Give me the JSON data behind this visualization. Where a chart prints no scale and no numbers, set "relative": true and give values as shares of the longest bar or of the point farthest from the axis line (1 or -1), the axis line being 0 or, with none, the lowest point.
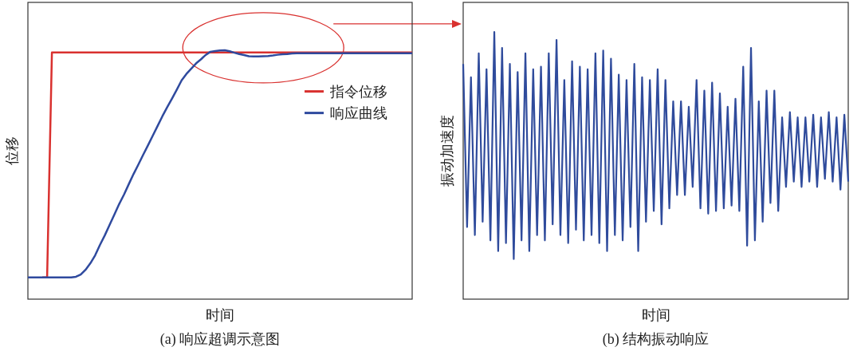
{
  "chart_data": [
    {
      "type": "line",
      "relative": true,
      "legend": "right",
      "xlabel": "时间",
      "ylabel": "位移",
      "annotations": [
        "(a) 响应超调示意图"
      ],
      "categories": [
        null,
        null,
        null,
        null,
        null,
        null,
        null,
        null,
        null,
        null,
        null,
        null,
        null,
        null,
        null,
        null,
        null,
        null,
        null,
        null,
        null,
        null,
        null,
        null,
        null,
        null,
        null,
        null,
        null,
        null,
        null,
        null,
        null,
        null,
        null,
        null,
        null,
        null,
        null,
        null,
        null,
        null,
        null,
        null,
        null,
        null,
        null,
        null,
        null,
        null,
        null,
        null,
        null,
        null,
        null,
        null,
        null,
        null,
        null,
        null,
        null,
        null,
        null,
        null,
        null,
        null,
        null,
        null,
        null,
        null,
        null,
        null,
        null,
        null,
        null,
        null,
        null,
        null,
        null,
        null,
        null
      ],
      "series": [
        {
          "name": "指令位移",
          "color": "#d9312f",
          "values": [
            null,
            null,
            null,
            0.087,
            0.087,
            0.991,
            0.991,
            0.991,
            0.991,
            0.991,
            0.991,
            0.991,
            0.991,
            0.991,
            0.991,
            0.991,
            0.991,
            0.991,
            0.991,
            0.991,
            0.991,
            0.991,
            0.991,
            0.991,
            0.991,
            0.991,
            0.991,
            0.991,
            0.991,
            0.991,
            0.991,
            0.991,
            0.991,
            0.991,
            0.991,
            0.991,
            0.991,
            0.991,
            0.991,
            0.991,
            0.991,
            0.991,
            0.991,
            0.991,
            0.991,
            0.991,
            0.991,
            0.991,
            0.991,
            0.991,
            0.991,
            0.991,
            0.991,
            0.991,
            0.991,
            0.991,
            0.991,
            0.991,
            0.991,
            0.991,
            0.991,
            0.991,
            0.991,
            0.991,
            0.991,
            0.991,
            0.991,
            0.991,
            0.991,
            0.991,
            0.991,
            0.991,
            0.991,
            0.991,
            0.991,
            0.991,
            0.991,
            0.991,
            0.991,
            0.991,
            0.991
          ]
        },
        {
          "name": "响应曲线",
          "color": "#2f4a9e",
          "values": [
            0.087,
            0.087,
            0.087,
            0.087,
            0.087,
            0.087,
            0.087,
            0.087,
            0.087,
            0.087,
            0.09,
            0.099,
            0.118,
            0.144,
            0.176,
            0.218,
            0.256,
            0.298,
            0.34,
            0.382,
            0.42,
            0.462,
            0.503,
            0.541,
            0.58,
            0.618,
            0.657,
            0.696,
            0.735,
            0.771,
            0.806,
            0.842,
            0.879,
            0.905,
            0.926,
            0.947,
            0.963,
            0.981,
            0.994,
            0.997,
            0.999,
            1,
            0.996,
            0.99,
            0.985,
            0.981,
            0.976,
            0.975,
            0.975,
            0.976,
            0.977,
            0.979,
            0.982,
            0.984,
            0.985,
            0.987,
            0.988,
            0.988,
            0.988,
            0.988,
            0.988,
            0.988,
            0.988,
            0.988,
            0.988,
            0.988,
            0.988,
            0.988,
            0.988,
            0.988,
            0.988,
            0.988,
            0.988,
            0.988,
            0.988,
            0.988,
            0.988,
            0.988,
            0.988,
            0.988,
            0.988
          ]
        }
      ]
    },
    {
      "type": "line",
      "relative": true,
      "xlabel": "时间",
      "ylabel": "振动加速度",
      "annotations": [
        "(b) 结构振动响应"
      ],
      "categories": [
        null,
        null,
        null,
        null,
        null,
        null,
        null,
        null,
        null,
        null,
        null,
        null,
        null,
        null,
        null,
        null,
        null,
        null,
        null,
        null,
        null,
        null,
        null,
        null,
        null,
        null,
        null,
        null,
        null,
        null,
        null,
        null,
        null,
        null,
        null,
        null,
        null,
        null,
        null,
        null,
        null,
        null,
        null,
        null,
        null,
        null,
        null,
        null,
        null,
        null,
        null,
        null,
        null,
        null,
        null,
        null,
        null,
        null,
        null,
        null,
        null,
        null,
        null,
        null,
        null,
        null,
        null,
        null,
        null,
        null,
        null,
        null,
        null,
        null,
        null,
        null,
        null,
        null,
        null,
        null,
        null,
        null,
        null,
        null,
        null,
        null,
        null,
        null,
        null,
        null,
        null,
        null,
        null,
        null,
        null,
        null,
        null,
        null,
        null,
        null
      ],
      "series": [
        {
          "color": "#2f4b9c",
          "values": [
            0.88,
            0.27,
            0.83,
            0.24,
            0.92,
            0.29,
            0.86,
            0.22,
            1,
            0.18,
            0.94,
            0.21,
            0.88,
            0.15,
            0.85,
            0.22,
            0.92,
            0.18,
            0.86,
            0.24,
            0.87,
            0.22,
            0.92,
            0.28,
            0.97,
            0.24,
            0.82,
            0.21,
            0.89,
            0.26,
            0.87,
            0.22,
            0.86,
            0.24,
            0.92,
            0.21,
            0.93,
            0.18,
            0.9,
            0.24,
            0.84,
            0.22,
            0.82,
            0.27,
            0.88,
            0.18,
            0.83,
            0.29,
            0.82,
            0.33,
            0.86,
            0.28,
            0.82,
            0.34,
            0.74,
            0.39,
            0.74,
            0.39,
            0.72,
            0.42,
            0.82,
            0.34,
            0.78,
            0.32,
            0.81,
            0.33,
            0.77,
            0.34,
            0.72,
            0.35,
            0.75,
            0.33,
            0.87,
            0.2,
            0.94,
            0.22,
            0.74,
            0.29,
            0.78,
            0.36,
            0.78,
            0.33,
            0.68,
            0.42,
            0.7,
            0.44,
            0.68,
            0.42,
            0.68,
            0.44,
            0.69,
            0.42,
            0.68,
            0.45,
            0.7,
            0.44,
            0.68,
            0.41,
            0.69,
            0.44
          ]
        }
      ]
    }
  ]
}
